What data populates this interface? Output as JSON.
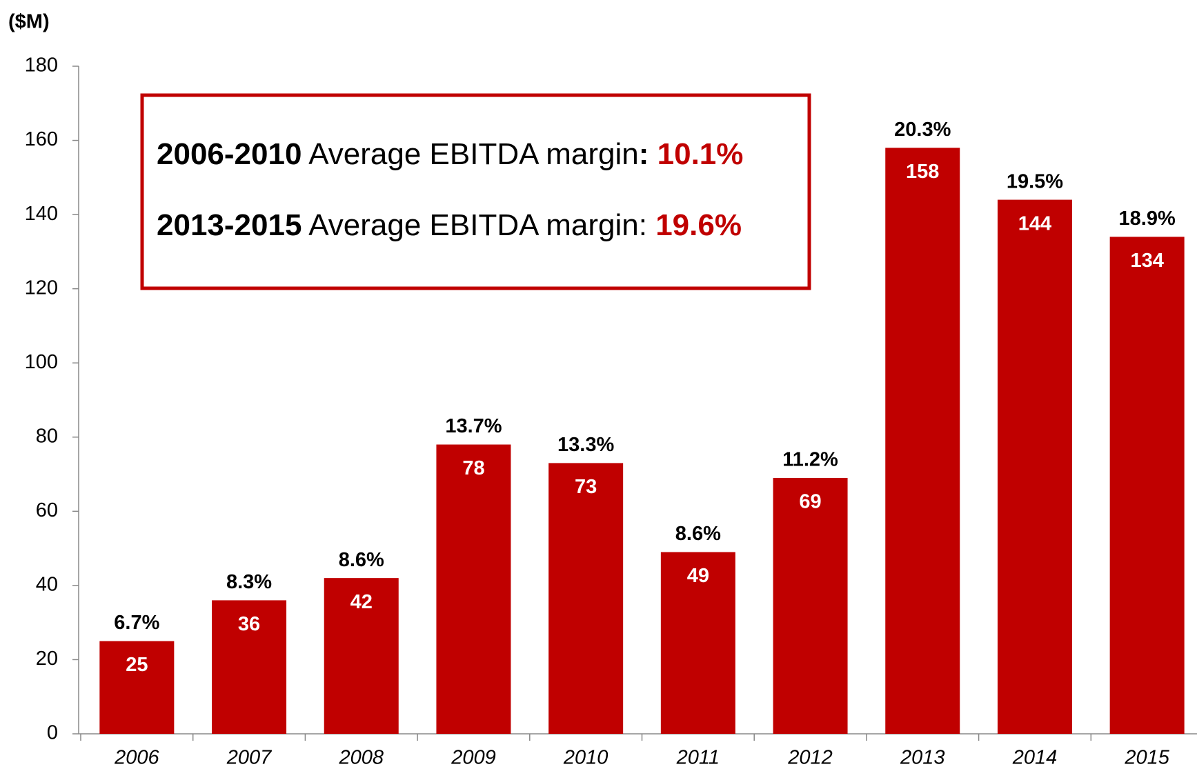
{
  "chart_data": {
    "type": "bar",
    "y_axis_label": "($M)",
    "categories": [
      "2006",
      "2007",
      "2008",
      "2009",
      "2010",
      "2011",
      "2012",
      "2013",
      "2014",
      "2015"
    ],
    "values": [
      25,
      36,
      42,
      78,
      73,
      49,
      69,
      158,
      144,
      134
    ],
    "margin_labels": [
      "6.7%",
      "8.3%",
      "8.6%",
      "13.7%",
      "13.3%",
      "8.6%",
      "11.2%",
      "20.3%",
      "19.5%",
      "18.9%"
    ],
    "color": "#c00000",
    "ylim": [
      0,
      180
    ],
    "yticks": [
      0,
      20,
      40,
      60,
      80,
      100,
      120,
      140,
      160,
      180
    ],
    "grid": false,
    "annotations": [
      {
        "period": "2006-2010",
        "text": " Average EBITDA margin",
        "colon": ":",
        "value": " 10.1%"
      },
      {
        "period": "2013-2015",
        "text": " Average EBITDA margin: ",
        "value": "19.6%"
      }
    ]
  }
}
